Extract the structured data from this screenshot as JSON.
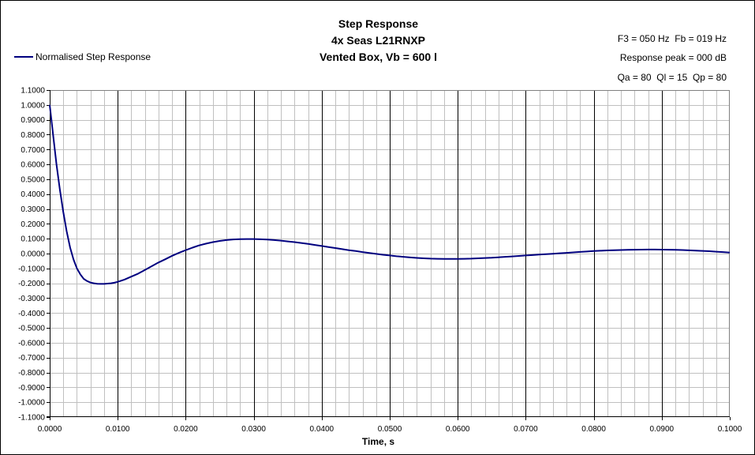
{
  "chart_data": {
    "type": "line",
    "title_lines": [
      "Step Response",
      "4x Seas L21RNXP",
      "Vented Box, Vb = 600 l"
    ],
    "info_lines": [
      "F3 = 050 Hz  Fb = 019 Hz",
      "Response peak = 000 dB",
      "Qa = 80  Ql = 15  Qp = 80"
    ],
    "xlabel": "Time, s",
    "ylabel": "",
    "xlim": [
      0,
      0.1
    ],
    "ylim": [
      -1.1,
      1.1
    ],
    "x_ticks": [
      "0.0000",
      "0.0100",
      "0.0200",
      "0.0300",
      "0.0400",
      "0.0500",
      "0.0600",
      "0.0700",
      "0.0800",
      "0.0900",
      "0.1000"
    ],
    "y_ticks": [
      "1.1000",
      "1.0000",
      "0.9000",
      "0.8000",
      "0.7000",
      "0.6000",
      "0.5000",
      "0.4000",
      "0.3000",
      "0.2000",
      "0.1000",
      "0.0000",
      "-0.1000",
      "-0.2000",
      "-0.3000",
      "-0.4000",
      "-0.5000",
      "-0.6000",
      "-0.7000",
      "-0.8000",
      "-0.9000",
      "-1.0000",
      "-1.1000"
    ],
    "grid": true,
    "legend_position": "left",
    "series": [
      {
        "name": "Normalised Step Response",
        "color": "#00007f",
        "x": [
          0.0,
          0.0005,
          0.001,
          0.0015,
          0.002,
          0.0025,
          0.003,
          0.0035,
          0.004,
          0.0045,
          0.005,
          0.0055,
          0.006,
          0.0065,
          0.007,
          0.0075,
          0.008,
          0.0085,
          0.009,
          0.0095,
          0.01,
          0.011,
          0.012,
          0.013,
          0.014,
          0.015,
          0.016,
          0.017,
          0.018,
          0.019,
          0.02,
          0.021,
          0.022,
          0.023,
          0.024,
          0.025,
          0.026,
          0.027,
          0.028,
          0.029,
          0.03,
          0.031,
          0.032,
          0.033,
          0.034,
          0.035,
          0.036,
          0.037,
          0.038,
          0.039,
          0.04,
          0.041,
          0.042,
          0.043,
          0.044,
          0.045,
          0.046,
          0.047,
          0.048,
          0.049,
          0.05,
          0.051,
          0.052,
          0.053,
          0.054,
          0.055,
          0.056,
          0.057,
          0.058,
          0.059,
          0.06,
          0.061,
          0.062,
          0.063,
          0.064,
          0.065,
          0.066,
          0.067,
          0.068,
          0.069,
          0.07,
          0.071,
          0.072,
          0.073,
          0.074,
          0.075,
          0.076,
          0.077,
          0.078,
          0.079,
          0.08,
          0.081,
          0.082,
          0.083,
          0.084,
          0.085,
          0.086,
          0.087,
          0.088,
          0.089,
          0.09,
          0.091,
          0.092,
          0.093,
          0.094,
          0.095,
          0.096,
          0.097,
          0.098,
          0.099,
          0.1
        ],
        "y": [
          1.0,
          0.8,
          0.6,
          0.43,
          0.28,
          0.15,
          0.04,
          -0.04,
          -0.1,
          -0.14,
          -0.17,
          -0.185,
          -0.195,
          -0.2,
          -0.203,
          -0.204,
          -0.204,
          -0.202,
          -0.2,
          -0.196,
          -0.19,
          -0.175,
          -0.155,
          -0.135,
          -0.11,
          -0.085,
          -0.06,
          -0.038,
          -0.015,
          0.005,
          0.023,
          0.04,
          0.055,
          0.067,
          0.077,
          0.085,
          0.091,
          0.095,
          0.097,
          0.098,
          0.098,
          0.096,
          0.094,
          0.091,
          0.087,
          0.082,
          0.077,
          0.071,
          0.065,
          0.058,
          0.051,
          0.044,
          0.037,
          0.03,
          0.023,
          0.017,
          0.01,
          0.004,
          -0.002,
          -0.008,
          -0.013,
          -0.018,
          -0.022,
          -0.026,
          -0.029,
          -0.032,
          -0.034,
          -0.035,
          -0.036,
          -0.036,
          -0.036,
          -0.035,
          -0.034,
          -0.032,
          -0.03,
          -0.028,
          -0.025,
          -0.022,
          -0.019,
          -0.016,
          -0.013,
          -0.01,
          -0.007,
          -0.004,
          -0.001,
          0.002,
          0.005,
          0.008,
          0.011,
          0.014,
          0.017,
          0.019,
          0.021,
          0.023,
          0.024,
          0.025,
          0.026,
          0.0265,
          0.027,
          0.027,
          0.0265,
          0.026,
          0.025,
          0.024,
          0.022,
          0.02,
          0.018,
          0.016,
          0.013,
          0.01,
          0.007
        ]
      }
    ]
  }
}
